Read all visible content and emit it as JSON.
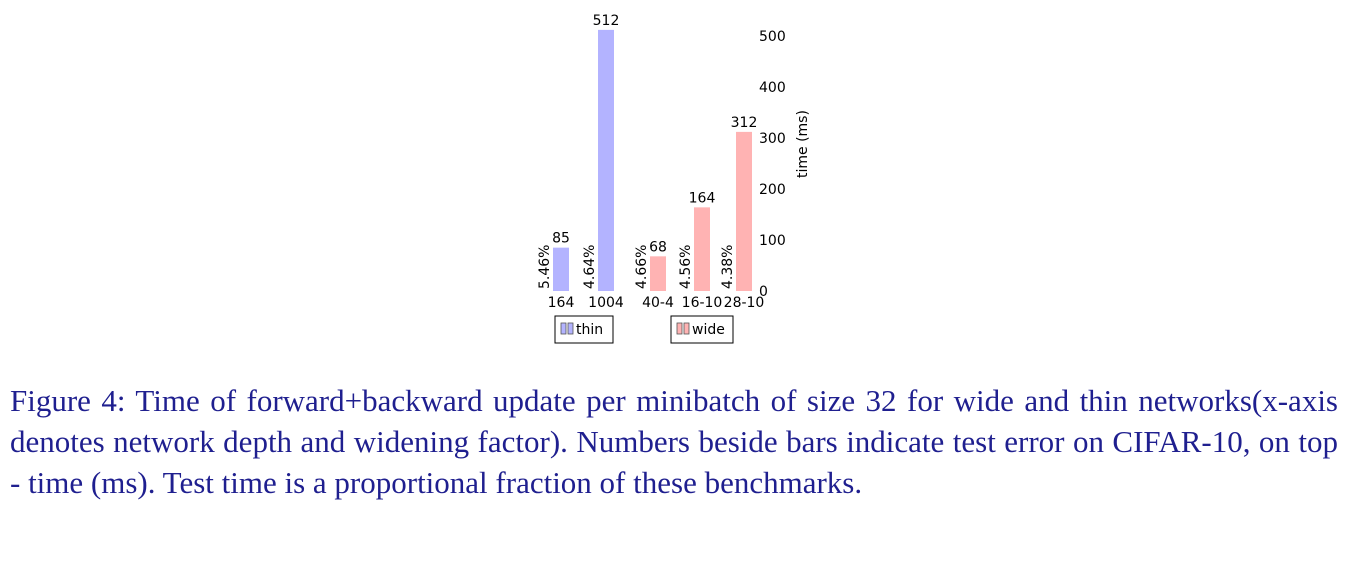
{
  "chart_data": {
    "type": "bar",
    "ylabel": "time (ms)",
    "ylim": [
      0,
      500
    ],
    "yticks": [
      0,
      100,
      200,
      300,
      400,
      500
    ],
    "grid": false,
    "groups": [
      {
        "legend": "thin",
        "color": "#b3b3ff",
        "bars": [
          {
            "category": "164",
            "value": 85,
            "error": "5.46%"
          },
          {
            "category": "1004",
            "value": 512,
            "error": "4.64%"
          }
        ]
      },
      {
        "legend": "wide",
        "color": "#ffb3b3",
        "bars": [
          {
            "category": "40-4",
            "value": 68,
            "error": "4.66%"
          },
          {
            "category": "16-10",
            "value": 164,
            "error": "4.56%"
          },
          {
            "category": "28-10",
            "value": 312,
            "error": "4.38%"
          }
        ]
      }
    ]
  },
  "caption": "Figure 4: Time of forward+backward update per minibatch of size 32 for wide and thin networks(x-axis denotes network depth and widening factor). Numbers beside bars indicate test error on CIFAR-10, on top - time (ms). Test time is a proportional fraction of these benchmarks."
}
